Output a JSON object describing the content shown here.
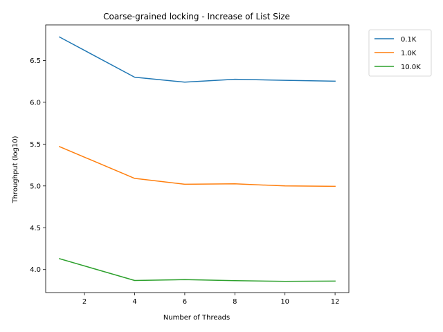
{
  "chart_data": {
    "type": "line",
    "title": "Coarse-grained locking - Increase of List Size",
    "xlabel": "Number of Threads",
    "ylabel": "Throughput (log10)",
    "xlim": [
      0.45,
      12.55
    ],
    "ylim": [
      3.725,
      6.925
    ],
    "xticks": [
      2,
      4,
      6,
      8,
      10,
      12
    ],
    "xtick_labels": [
      "2",
      "4",
      "6",
      "8",
      "10",
      "12"
    ],
    "yticks": [
      4.0,
      4.5,
      5.0,
      5.5,
      6.0,
      6.5
    ],
    "ytick_labels": [
      "4.0",
      "4.5",
      "5.0",
      "5.5",
      "6.0",
      "6.5"
    ],
    "grid": false,
    "legend_position": "outside-top-right",
    "x": [
      1,
      4,
      6,
      8,
      10,
      12
    ],
    "series": [
      {
        "name": "0.1K",
        "color": "#1f77b4",
        "values": [
          6.78,
          6.3,
          6.24,
          6.275,
          6.263,
          6.252
        ]
      },
      {
        "name": "1.0K",
        "color": "#ff7f0e",
        "values": [
          5.47,
          5.09,
          5.02,
          5.025,
          5.0,
          4.995
        ]
      },
      {
        "name": "10.0K",
        "color": "#2ca02c",
        "values": [
          4.13,
          3.87,
          3.88,
          3.867,
          3.86,
          3.862
        ]
      }
    ]
  }
}
